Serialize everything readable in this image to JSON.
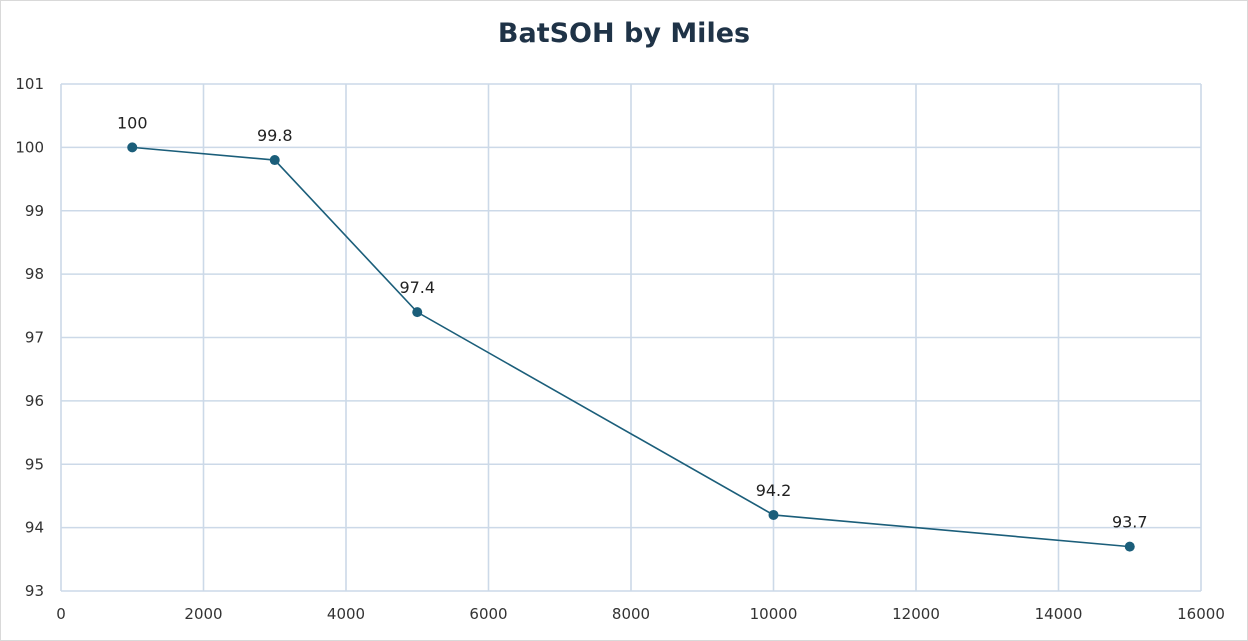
{
  "chart_data": {
    "type": "scatter",
    "title": "BatSOH by Miles",
    "xlabel": "",
    "ylabel": "",
    "xlim": [
      0,
      16000
    ],
    "ylim": [
      93,
      101
    ],
    "x_ticks": [
      0,
      2000,
      4000,
      6000,
      8000,
      10000,
      12000,
      14000,
      16000
    ],
    "y_ticks": [
      93,
      94,
      95,
      96,
      97,
      98,
      99,
      100,
      101
    ],
    "grid": true,
    "legend": "none",
    "series": [
      {
        "x": [
          1000,
          3000,
          5000,
          10000,
          15000
        ],
        "y": [
          100,
          99.8,
          97.4,
          94.2,
          93.7
        ],
        "data_labels": [
          "100",
          "99.8",
          "97.4",
          "94.2",
          "93.7"
        ],
        "color": "#1b5e7a",
        "line": true,
        "markers": true
      }
    ],
    "colors": {
      "grid": "#ccd9e8",
      "axis": "#ccd9e8",
      "series": "#1b5e7a"
    }
  }
}
